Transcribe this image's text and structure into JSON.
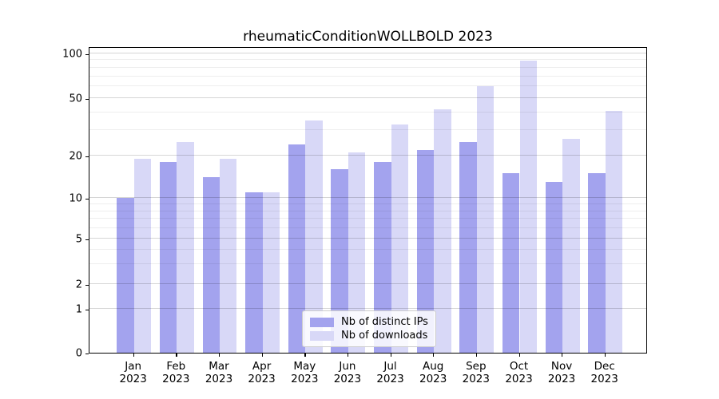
{
  "title": "rheumaticConditionWOLLBOLD 2023",
  "chart_data": {
    "type": "bar",
    "title": "rheumaticConditionWOLLBOLD 2023",
    "categories": [
      "Jan",
      "Feb",
      "Mar",
      "Apr",
      "May",
      "Jun",
      "Jul",
      "Aug",
      "Sep",
      "Oct",
      "Nov",
      "Dec"
    ],
    "category_year": "2023",
    "series": [
      {
        "name": "Nb of distinct IPs",
        "color": "#a3a3ee",
        "values": [
          10,
          18,
          14,
          11,
          24,
          16,
          18,
          22,
          25,
          15,
          13,
          15
        ]
      },
      {
        "name": "Nb of downloads",
        "color": "#d8d8f7",
        "values": [
          19,
          25,
          19,
          11,
          35,
          21,
          33,
          42,
          60,
          89,
          26,
          41
        ]
      }
    ],
    "yscale": "symlog",
    "ylim": [
      0,
      100
    ],
    "yticks": [
      0,
      1,
      2,
      5,
      10,
      20,
      50,
      100
    ],
    "minor_yticks": [
      3,
      4,
      6,
      7,
      8,
      9,
      30,
      40,
      60,
      70,
      80,
      90
    ],
    "grid": true,
    "legend_position": "lower center",
    "legend": [
      "Nb of distinct IPs",
      "Nb of downloads"
    ]
  },
  "colors": {
    "background": "#ffffff",
    "bar_dark": "#a3a3ee",
    "bar_light": "#d8d8f7",
    "axis": "#000000",
    "grid_major": "#d6d6d6",
    "grid_minor": "#ededed",
    "legend_border": "#cccccc"
  }
}
